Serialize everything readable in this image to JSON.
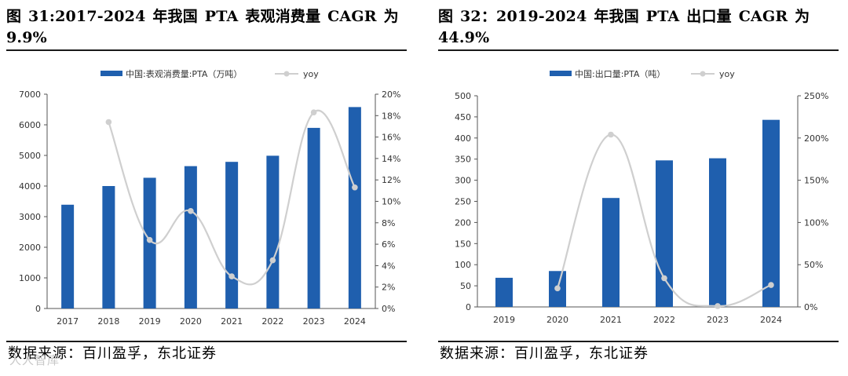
{
  "charts": [
    {
      "figure_title": "图 31:2017-2024 年我国 PTA 表观消费量 CAGR 为 9.9%",
      "source": "数据来源：百川盈孚，东北证券",
      "colors": {
        "bar": "#1f5fae",
        "line": "#cfcfcf",
        "axis": "#555555"
      },
      "chart_data": {
        "type": "bar",
        "categories": [
          "2017",
          "2018",
          "2019",
          "2020",
          "2021",
          "2022",
          "2023",
          "2024"
        ],
        "series": [
          {
            "name": "中国:表观消费量:PTA（万吨）",
            "type": "bar",
            "axis": "left",
            "values": [
              3390,
              4000,
              4270,
              4650,
              4790,
              4990,
              5900,
              6580
            ]
          },
          {
            "name": "yoy",
            "type": "line",
            "axis": "right",
            "values": [
              null,
              17.4,
              6.4,
              9.1,
              3.0,
              4.5,
              18.3,
              11.3
            ]
          }
        ],
        "ylim": [
          0,
          7000
        ],
        "yticks": [
          0,
          1000,
          2000,
          3000,
          4000,
          5000,
          6000,
          7000
        ],
        "y2lim": [
          0,
          20
        ],
        "y2ticks": [
          "0%",
          "2%",
          "4%",
          "6%",
          "8%",
          "10%",
          "12%",
          "14%",
          "16%",
          "18%",
          "20%"
        ],
        "legend_position": "top-center"
      }
    },
    {
      "figure_title": "图 32：2019-2024 年我国 PTA 出口量 CAGR 为 44.9%",
      "source": "数据来源：百川盈孚，东北证券",
      "colors": {
        "bar": "#1f5fae",
        "line": "#cfcfcf",
        "axis": "#555555"
      },
      "chart_data": {
        "type": "bar",
        "categories": [
          "2019",
          "2020",
          "2021",
          "2022",
          "2023",
          "2024"
        ],
        "series": [
          {
            "name": "中国:出口量:PTA（吨）",
            "type": "bar",
            "axis": "left",
            "values": [
              69,
              85,
              258,
              347,
              352,
              443
            ]
          },
          {
            "name": "yoy",
            "type": "line",
            "axis": "right",
            "values": [
              null,
              22,
              204,
              34,
              1,
              26
            ]
          }
        ],
        "ylim": [
          0,
          500
        ],
        "yticks": [
          0,
          50,
          100,
          150,
          200,
          250,
          300,
          350,
          400,
          450,
          500
        ],
        "y2lim": [
          0,
          250
        ],
        "y2ticks": [
          "0%",
          "50%",
          "100%",
          "150%",
          "200%",
          "250%"
        ],
        "legend_position": "top-center"
      }
    }
  ],
  "watermark": "人人智库"
}
